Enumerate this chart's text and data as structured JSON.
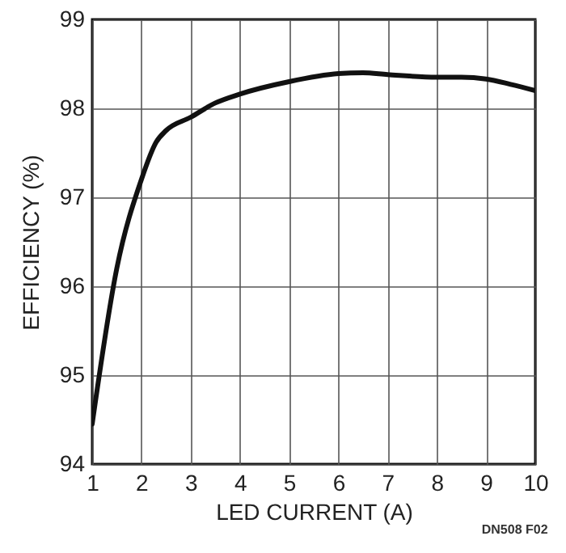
{
  "chart_data": {
    "type": "line",
    "xlabel": "LED CURRENT (A)",
    "ylabel": "EFFICIENCY (%)",
    "x": [
      1,
      1.5,
      2,
      2.3,
      2.5,
      3,
      3.5,
      4,
      5,
      6,
      6.5,
      7,
      8,
      8.5,
      9,
      9.5,
      10
    ],
    "series": [
      {
        "color": "#111111",
        "values": [
          94.45,
          96.2,
          97.2,
          97.62,
          97.75,
          97.9,
          98.06,
          98.16,
          98.3,
          98.39,
          98.4,
          98.38,
          98.35,
          98.35,
          98.33,
          98.27,
          98.2
        ]
      }
    ],
    "xlim": [
      1,
      10
    ],
    "ylim": [
      94,
      99
    ],
    "xticks": [
      1,
      2,
      3,
      4,
      5,
      6,
      7,
      8,
      9,
      10
    ],
    "yticks": [
      94,
      95,
      96,
      97,
      98,
      99
    ],
    "grid": true,
    "marker": "none",
    "line_style": "solid",
    "annotations": [
      "DN508 F02"
    ]
  }
}
